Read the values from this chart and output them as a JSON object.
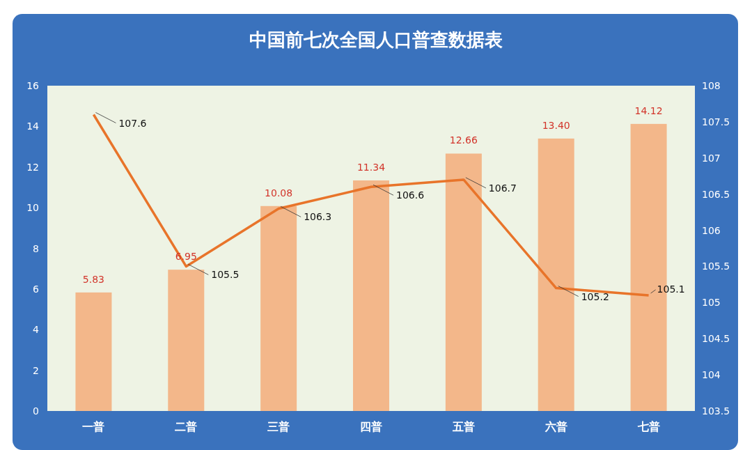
{
  "chart_data": {
    "type": "bar",
    "title": "中国前七次全国人口普查数据表",
    "categories": [
      "一普",
      "二普",
      "三普",
      "四普",
      "五普",
      "六普",
      "七普"
    ],
    "series": [
      {
        "color": "#f3b78a",
        "values": [
          5.83,
          6.95,
          10.08,
          11.34,
          12.66,
          13.4,
          14.12
        ],
        "value_labels": [
          "5.83",
          "6.95",
          "10.08",
          "11.34",
          "12.66",
          "13.40",
          "14.12"
        ]
      },
      {
        "type": "line",
        "axis": "y2",
        "color": "#e8742a",
        "values": [
          107.6,
          105.5,
          106.3,
          106.6,
          106.7,
          105.2,
          105.1
        ],
        "value_labels": [
          "107.6",
          "105.5",
          "106.3",
          "106.6",
          "106.7",
          "105.2",
          "105.1"
        ]
      }
    ],
    "ylim": [
      0,
      16
    ],
    "yticks": [
      0,
      2,
      4,
      6,
      8,
      10,
      12,
      14,
      16
    ],
    "y2lim": [
      103.5,
      108
    ],
    "y2ticks": [
      {
        "value": 103.5,
        "label": "103.5"
      },
      {
        "value": 104,
        "label": "104"
      },
      {
        "value": 104.5,
        "label": "104.5"
      },
      {
        "value": 105,
        "label": "105"
      },
      {
        "value": 105.5,
        "label": "105.5"
      },
      {
        "value": 106,
        "label": "106"
      },
      {
        "value": 106.5,
        "label": "106.5"
      },
      {
        "value": 107,
        "label": "107"
      },
      {
        "value": 107.5,
        "label": "107.5"
      },
      {
        "value": 108,
        "label": "108"
      }
    ],
    "grid": false
  }
}
